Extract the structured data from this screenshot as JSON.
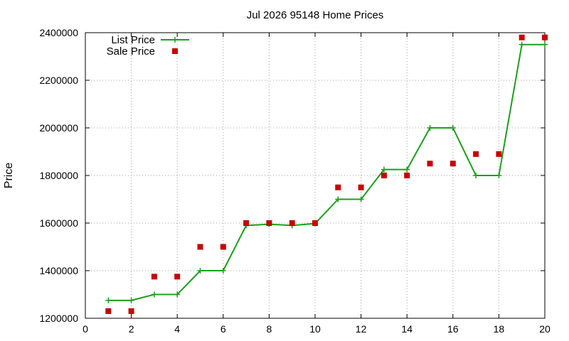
{
  "chart_data": {
    "type": "line",
    "title": "Jul 2026 95148 Home Prices",
    "xlabel": "",
    "ylabel": "Price",
    "xlim": [
      0,
      20
    ],
    "ylim": [
      1200000,
      2400000
    ],
    "x_ticks": [
      0,
      2,
      4,
      6,
      8,
      10,
      12,
      14,
      16,
      18,
      20
    ],
    "y_ticks": [
      1200000,
      1400000,
      1600000,
      1800000,
      2000000,
      2200000,
      2400000
    ],
    "grid": true,
    "legend_position": "top-left",
    "series": [
      {
        "name": "List Price",
        "style": "line-with-plus-markers",
        "color": "#1aa01a",
        "x": [
          1,
          2,
          3,
          4,
          5,
          6,
          7,
          8,
          9,
          10,
          11,
          12,
          13,
          14,
          15,
          16,
          17,
          18,
          19,
          20
        ],
        "y": [
          1275000,
          1275000,
          1300000,
          1300000,
          1400000,
          1400000,
          1590000,
          1595000,
          1590000,
          1598000,
          1700000,
          1700000,
          1825000,
          1825000,
          2000000,
          2000000,
          1800000,
          1800000,
          2350000,
          2350000
        ]
      },
      {
        "name": "Sale Price",
        "style": "square-markers",
        "color": "#c80000",
        "x": [
          1,
          2,
          3,
          4,
          5,
          6,
          7,
          8,
          9,
          10,
          11,
          12,
          13,
          14,
          15,
          16,
          17,
          18,
          19,
          20
        ],
        "y": [
          1230000,
          1230000,
          1375000,
          1375000,
          1500000,
          1500000,
          1600000,
          1600000,
          1600000,
          1600000,
          1750000,
          1750000,
          1800000,
          1800000,
          1850000,
          1850000,
          1890000,
          1890000,
          2380000,
          2380000
        ]
      }
    ]
  }
}
